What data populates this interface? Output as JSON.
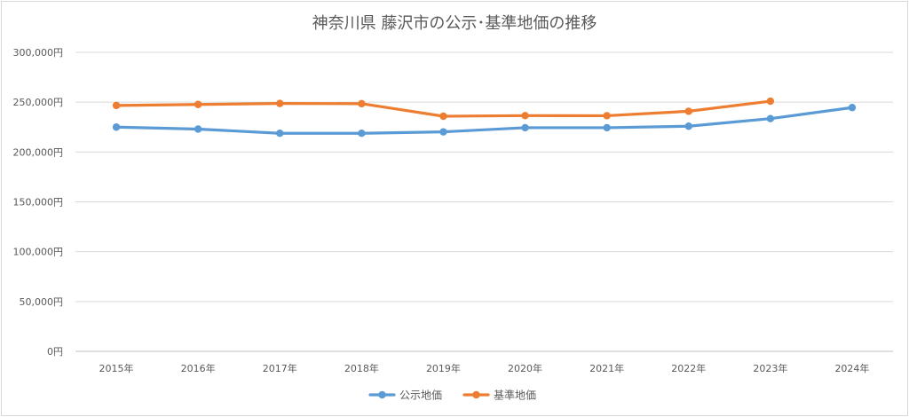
{
  "chart_data": {
    "type": "line",
    "title": "神奈川県 藤沢市の公示･基準地価の推移",
    "categories": [
      "2015年",
      "2016年",
      "2017年",
      "2018年",
      "2019年",
      "2020年",
      "2021年",
      "2022年",
      "2023年",
      "2024年"
    ],
    "yticks": [
      "0円",
      "50,000円",
      "100,000円",
      "150,000円",
      "200,000円",
      "250,000円",
      "300,000円"
    ],
    "ylim": [
      0,
      300000
    ],
    "grid": true,
    "legend_position": "bottom",
    "series": [
      {
        "name": "公示地価",
        "color": "#5b9bd5",
        "values": [
          225000,
          223000,
          218800,
          218800,
          220200,
          224400,
          224400,
          225900,
          233500,
          244600
        ]
      },
      {
        "name": "基準地価",
        "color": "#ed7d31",
        "values": [
          246700,
          247700,
          248700,
          248500,
          235900,
          236500,
          236400,
          240900,
          251000,
          null
        ]
      }
    ]
  }
}
